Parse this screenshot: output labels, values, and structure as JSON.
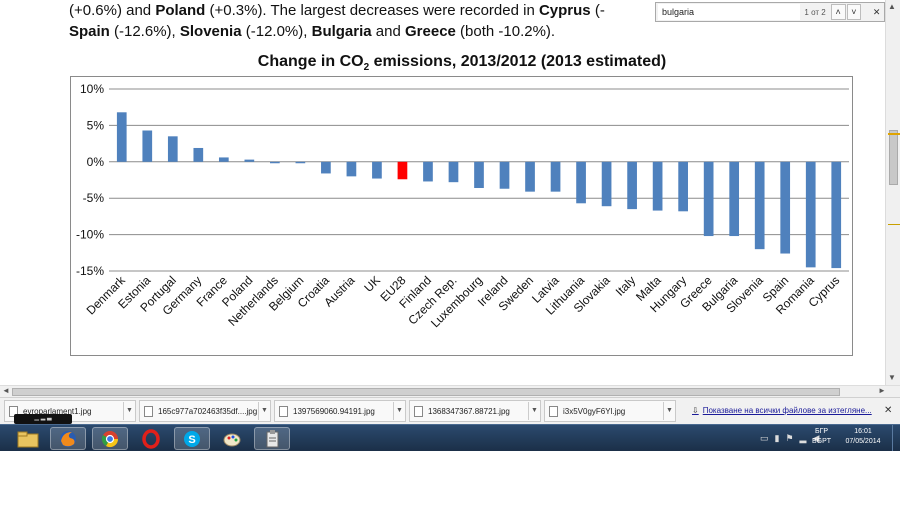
{
  "article": {
    "line1": [
      {
        "text": "(+0.6%) and ",
        "bold": false
      },
      {
        "text": "Poland",
        "bold": true
      },
      {
        "text": " (+0.3%). The largest decreases were recorded in ",
        "bold": false
      },
      {
        "text": "Cyprus",
        "bold": true
      },
      {
        "text": " (-",
        "bold": false
      }
    ],
    "line2": [
      {
        "text": "Spain",
        "bold": true
      },
      {
        "text": " (-12.6%), ",
        "bold": false
      },
      {
        "text": "Slovenia",
        "bold": true
      },
      {
        "text": " (-12.0%), ",
        "bold": false
      },
      {
        "text": "Bulgaria",
        "bold": true
      },
      {
        "text": " and ",
        "bold": false
      },
      {
        "text": "Greece",
        "bold": true
      },
      {
        "text": " (both -10.2%).",
        "bold": false
      }
    ]
  },
  "find": {
    "query": "bulgaria",
    "count": "1 от 2",
    "prev": "˄",
    "next": "˅",
    "close": "✕"
  },
  "chart_data": {
    "type": "bar",
    "title_main": "Change in CO",
    "title_sub": "2",
    "title_rest": " emissions, 2013/2012 (2013 estimated)",
    "categories": [
      "Denmark",
      "Estonia",
      "Portugal",
      "Germany",
      "France",
      "Poland",
      "Netherlands",
      "Belgium",
      "Croatia",
      "Austria",
      "UK",
      "EU28",
      "Finland",
      "Czech Rep.",
      "Luxembourg",
      "Ireland",
      "Sweden",
      "Latvia",
      "Lithuania",
      "Slovakia",
      "Italy",
      "Malta",
      "Hungary",
      "Greece",
      "Bulgaria",
      "Slovenia",
      "Spain",
      "Romania",
      "Cyprus"
    ],
    "values": [
      6.8,
      4.3,
      3.5,
      1.9,
      0.6,
      0.3,
      -0.2,
      -0.2,
      -1.6,
      -2.0,
      -2.3,
      -2.4,
      -2.7,
      -2.8,
      -3.6,
      -3.7,
      -4.1,
      -4.1,
      -5.7,
      -6.1,
      -6.5,
      -6.7,
      -6.8,
      -10.2,
      -10.2,
      -12.0,
      -12.6,
      -14.5,
      -14.6
    ],
    "highlight": "EU28",
    "ylim": [
      -15,
      10
    ],
    "yticks": [
      "10%",
      "5%",
      "0%",
      "-5%",
      "-10%",
      "-15%"
    ],
    "ytick_values": [
      10,
      5,
      0,
      -5,
      -10,
      -15
    ],
    "bar_color": "#4f81bd",
    "highlight_color": "#ff0000",
    "grid": true
  },
  "downloads": {
    "items": [
      "evroparlament1.jpg",
      "165c977a702463f35df....jpg",
      "1397569060.94191.jpg",
      "1368347367.88721.jpg",
      "i3x5V0gyF6Yl.jpg"
    ],
    "show_all": "Показване на всички файлове за изтегляне...",
    "close": "✕"
  },
  "taskbar": {
    "lang_top": "БГР",
    "lang_bottom": "BGPT",
    "time": "16:01",
    "date": "07/05/2014",
    "apps": [
      "file-explorer-icon",
      "firefox-icon",
      "chrome-icon",
      "opera-icon",
      "skype-icon",
      "paint-icon",
      "clipboard-app-icon"
    ]
  },
  "tooltip": "▁ ▂ ▃"
}
